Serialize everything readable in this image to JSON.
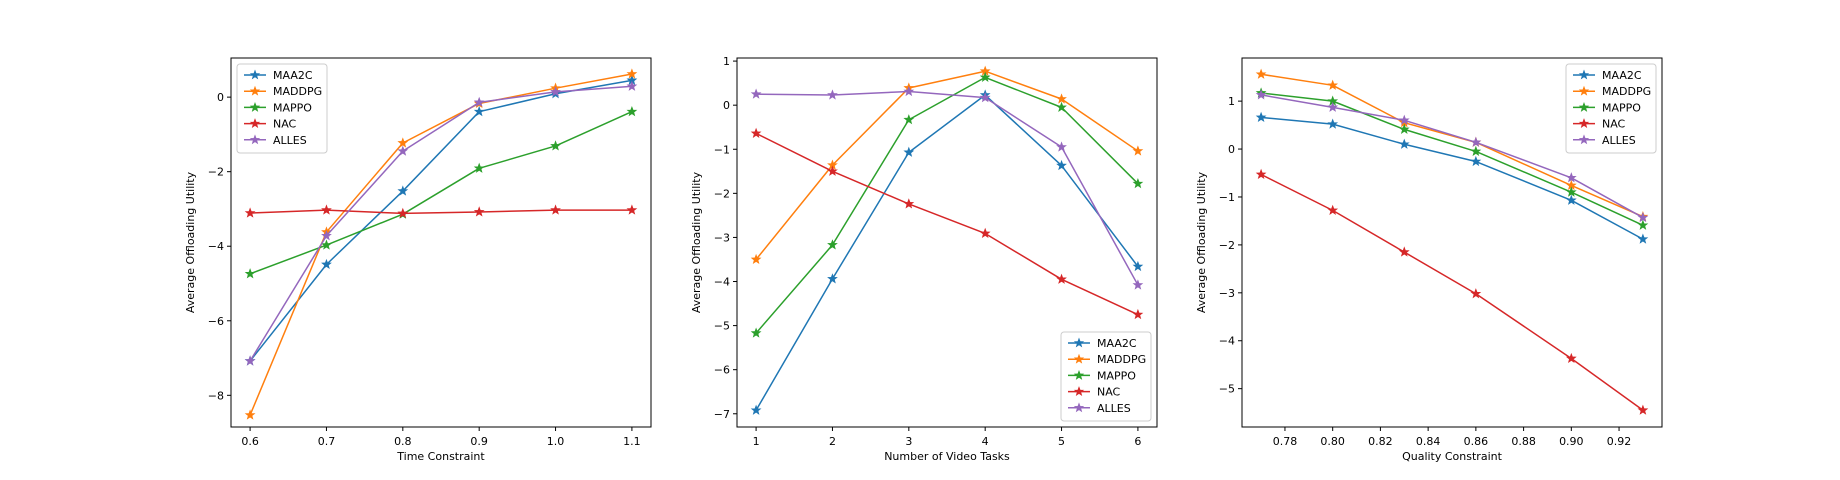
{
  "figure": {
    "panels": [
      "time-constraint",
      "video-tasks",
      "quality-constraint"
    ]
  },
  "chart_data": [
    {
      "type": "line",
      "id": "time-constraint",
      "title": "",
      "xlabel": "Time Constraint",
      "ylabel": "Average Offloading Utility",
      "x": [
        0.6,
        0.7,
        0.8,
        0.9,
        1.0,
        1.1
      ],
      "xlim": [
        0.575,
        1.125
      ],
      "ylim": [
        -8.85,
        1.05
      ],
      "xticks": [
        0.6,
        0.7,
        0.8,
        0.9,
        1.0,
        1.1
      ],
      "xtick_labels": [
        "0.6",
        "0.7",
        "0.8",
        "0.9",
        "1.0",
        "1.1"
      ],
      "yticks": [
        -8,
        -6,
        -4,
        -2,
        0
      ],
      "ytick_labels": [
        "−8",
        "−6",
        "−4",
        "−2",
        "0"
      ],
      "grid": false,
      "legend": "upper-left",
      "series": [
        {
          "name": "MAA2C",
          "color": "#1f77b4",
          "values": [
            -7.08,
            -4.49,
            -2.52,
            -0.39,
            0.09,
            0.45
          ]
        },
        {
          "name": "MADDPG",
          "color": "#ff7f0e",
          "values": [
            -8.53,
            -3.62,
            -1.23,
            -0.17,
            0.24,
            0.62
          ]
        },
        {
          "name": "MAPPO",
          "color": "#2ca02c",
          "values": [
            -4.74,
            -3.97,
            -3.14,
            -1.91,
            -1.31,
            -0.39
          ]
        },
        {
          "name": "NAC",
          "color": "#d62728",
          "values": [
            -3.11,
            -3.03,
            -3.12,
            -3.08,
            -3.03,
            -3.03
          ]
        },
        {
          "name": "ALLES",
          "color": "#9467bd",
          "values": [
            -7.08,
            -3.72,
            -1.45,
            -0.14,
            0.14,
            0.29
          ]
        }
      ]
    },
    {
      "type": "line",
      "id": "video-tasks",
      "title": "",
      "xlabel": "Number of Video Tasks",
      "ylabel": "Average Offloading Utility",
      "x": [
        1,
        2,
        3,
        4,
        5,
        6
      ],
      "xlim": [
        0.75,
        6.25
      ],
      "ylim": [
        -7.3,
        1.07
      ],
      "xticks": [
        1,
        2,
        3,
        4,
        5,
        6
      ],
      "xtick_labels": [
        "1",
        "2",
        "3",
        "4",
        "5",
        "6"
      ],
      "yticks": [
        -7,
        -6,
        -5,
        -4,
        -3,
        -2,
        -1,
        0,
        1
      ],
      "ytick_labels": [
        "−7",
        "−6",
        "−5",
        "−4",
        "−3",
        "−2",
        "−1",
        "0",
        "1"
      ],
      "grid": false,
      "legend": "lower-right",
      "series": [
        {
          "name": "MAA2C",
          "color": "#1f77b4",
          "values": [
            -6.92,
            -3.94,
            -1.07,
            0.23,
            -1.37,
            -3.66
          ]
        },
        {
          "name": "MADDPG",
          "color": "#ff7f0e",
          "values": [
            -3.5,
            -1.36,
            0.39,
            0.77,
            0.14,
            -1.04
          ]
        },
        {
          "name": "MAPPO",
          "color": "#2ca02c",
          "values": [
            -5.17,
            -3.17,
            -0.33,
            0.63,
            -0.05,
            -1.78
          ]
        },
        {
          "name": "NAC",
          "color": "#d62728",
          "values": [
            -0.64,
            -1.5,
            -2.24,
            -2.91,
            -3.95,
            -4.75
          ]
        },
        {
          "name": "ALLES",
          "color": "#9467bd",
          "values": [
            0.25,
            0.23,
            0.31,
            0.17,
            -0.95,
            -4.08
          ]
        }
      ]
    },
    {
      "type": "line",
      "id": "quality-constraint",
      "title": "",
      "xlabel": "Quality Constraint",
      "ylabel": "Average Offloading Utility",
      "x": [
        0.77,
        0.8,
        0.83,
        0.86,
        0.9,
        0.93
      ],
      "xlim": [
        0.762,
        0.938
      ],
      "ylim": [
        -5.8,
        1.9
      ],
      "xticks": [
        0.78,
        0.8,
        0.82,
        0.84,
        0.86,
        0.88,
        0.9,
        0.92
      ],
      "xtick_labels": [
        "0.78",
        "0.80",
        "0.82",
        "0.84",
        "0.86",
        "0.88",
        "0.90",
        "0.92"
      ],
      "yticks": [
        -5,
        -4,
        -3,
        -2,
        -1,
        0,
        1
      ],
      "ytick_labels": [
        "−5",
        "−4",
        "−3",
        "−2",
        "−1",
        "0",
        "1"
      ],
      "grid": false,
      "legend": "upper-right",
      "series": [
        {
          "name": "MAA2C",
          "color": "#1f77b4",
          "values": [
            0.66,
            0.52,
            0.1,
            -0.26,
            -1.07,
            -1.88
          ]
        },
        {
          "name": "MADDPG",
          "color": "#ff7f0e",
          "values": [
            1.56,
            1.33,
            0.55,
            0.14,
            -0.76,
            -1.41
          ]
        },
        {
          "name": "MAPPO",
          "color": "#2ca02c",
          "values": [
            1.17,
            1.0,
            0.41,
            -0.05,
            -0.9,
            -1.59
          ]
        },
        {
          "name": "NAC",
          "color": "#d62728",
          "values": [
            -0.53,
            -1.28,
            -2.15,
            -3.02,
            -4.37,
            -5.45
          ]
        },
        {
          "name": "ALLES",
          "color": "#9467bd",
          "values": [
            1.13,
            0.87,
            0.6,
            0.14,
            -0.6,
            -1.43
          ]
        }
      ]
    }
  ]
}
